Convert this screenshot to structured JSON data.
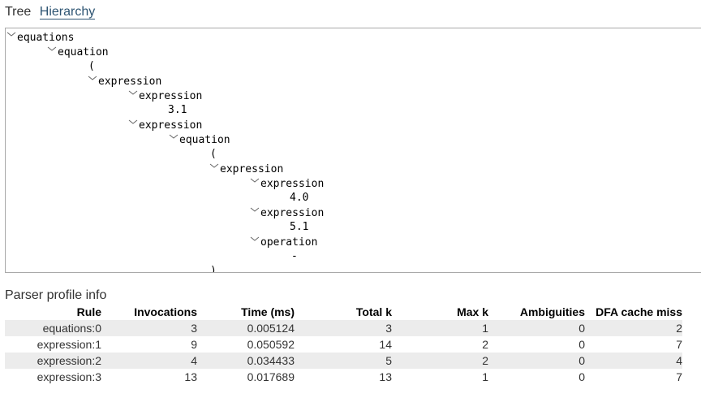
{
  "tabs": [
    {
      "label": "Tree",
      "active": false
    },
    {
      "label": "Hierarchy",
      "active": true
    }
  ],
  "tree": [
    {
      "label": "equations",
      "depth": 0,
      "expander": true
    },
    {
      "label": "equation",
      "depth": 1,
      "expander": true
    },
    {
      "label": "(",
      "depth": 2,
      "expander": false
    },
    {
      "label": "expression",
      "depth": 2,
      "expander": true
    },
    {
      "label": "expression",
      "depth": 3,
      "expander": true
    },
    {
      "label": "3.1",
      "depth": 4,
      "expander": false
    },
    {
      "label": "expression",
      "depth": 3,
      "expander": true
    },
    {
      "label": "equation",
      "depth": 4,
      "expander": true
    },
    {
      "label": "(",
      "depth": 5,
      "expander": false
    },
    {
      "label": "expression",
      "depth": 5,
      "expander": true
    },
    {
      "label": "expression",
      "depth": 6,
      "expander": true
    },
    {
      "label": "4.0",
      "depth": 7,
      "expander": false
    },
    {
      "label": "expression",
      "depth": 6,
      "expander": true
    },
    {
      "label": "5.1",
      "depth": 7,
      "expander": false
    },
    {
      "label": "operation",
      "depth": 6,
      "expander": true
    },
    {
      "label": "-",
      "depth": 7,
      "expander": false
    },
    {
      "label": ")",
      "depth": 5,
      "expander": false
    }
  ],
  "profile": {
    "title": "Parser profile info",
    "columns": [
      "Rule",
      "Invocations",
      "Time (ms)",
      "Total k",
      "Max k",
      "Ambiguities",
      "DFA cache miss"
    ],
    "rows": [
      [
        "equations:0",
        "3",
        "0.005124",
        "3",
        "1",
        "0",
        "2"
      ],
      [
        "expression:1",
        "9",
        "0.050592",
        "14",
        "2",
        "0",
        "7"
      ],
      [
        "expression:2",
        "4",
        "0.034433",
        "5",
        "2",
        "0",
        "4"
      ],
      [
        "expression:3",
        "13",
        "0.017689",
        "13",
        "1",
        "0",
        "7"
      ]
    ]
  }
}
